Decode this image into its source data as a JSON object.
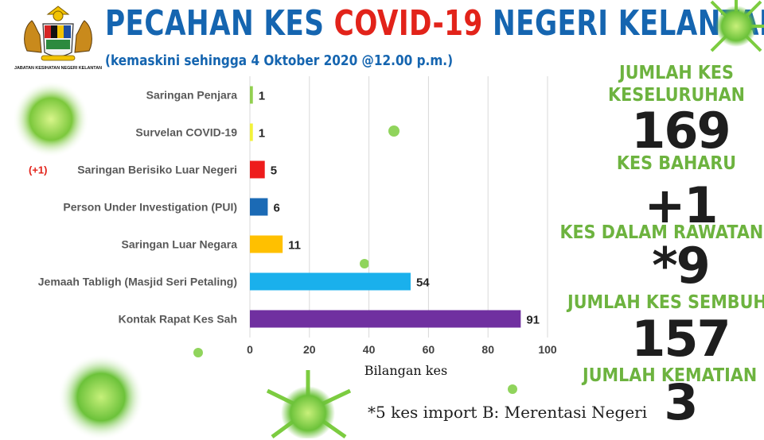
{
  "header": {
    "title_part1": "PECAHAN KES ",
    "title_highlight": "COVID-19",
    "title_part2": " NEGERI KELANTAN",
    "subtitle": "(kemaskini sehingga 4 Oktober 2020 @12.00 p.m.)",
    "logo_caption": "JABATAN KESIHATAN NEGERI KELANTAN",
    "title_color": "#1565b0",
    "highlight_color": "#e2231a"
  },
  "chart_data": {
    "type": "bar",
    "orientation": "horizontal",
    "categories": [
      "Saringan Penjara",
      "Survelan COVID-19",
      "Saringan Berisiko Luar Negeri",
      "Person Under Investigation (PUI)",
      "Saringan Luar Negara",
      "Jemaah Tabligh (Masjid Seri Petaling)",
      "Kontak Rapat Kes Sah"
    ],
    "category_prefixes": [
      "",
      "",
      "(+1)",
      "",
      "",
      "",
      ""
    ],
    "values": [
      1,
      1,
      5,
      6,
      11,
      54,
      91
    ],
    "colors": [
      "#92d050",
      "#f2f23a",
      "#ee1c1c",
      "#1b6ab5",
      "#ffc000",
      "#1ab0ec",
      "#7030a0"
    ],
    "xlabel": "Bilangan kes",
    "xlim": [
      0,
      100
    ],
    "xticks": [
      0,
      20,
      40,
      60,
      80,
      100
    ],
    "grid": true
  },
  "stats": [
    {
      "label": "JUMLAH KES KESELURUHAN",
      "value": "169"
    },
    {
      "label": "KES BAHARU",
      "value": "+1"
    },
    {
      "label": "KES DALAM RAWATAN",
      "value": "*9"
    },
    {
      "label": "JUMLAH KES SEMBUH",
      "value": "157"
    },
    {
      "label": "JUMLAH KEMATIAN",
      "value": "3"
    }
  ],
  "footnote": "*5 kes import B: Merentasi Negeri",
  "colors": {
    "accent_green": "#6db33f",
    "prefix_red": "#e2231a"
  }
}
